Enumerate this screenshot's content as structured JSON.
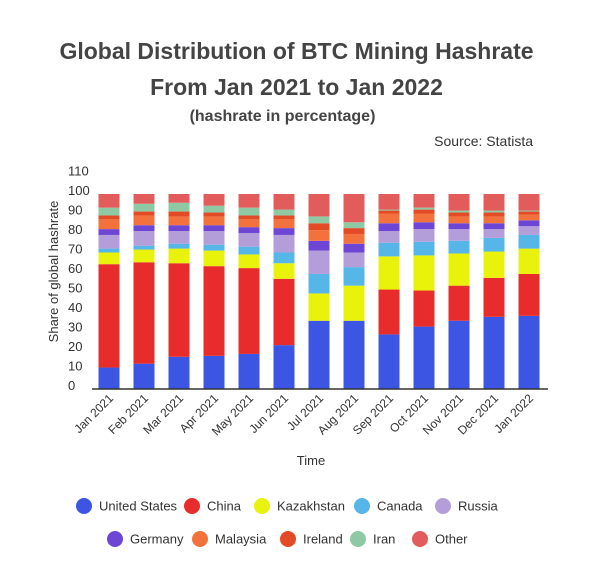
{
  "title_line1": "Global Distribution of BTC Mining Hashrate",
  "title_line2": "From Jan 2021 to Jan 2022",
  "subtitle": "(hashrate in percentage)",
  "source": "Source: Statista",
  "chart_data": {
    "type": "bar",
    "stacked": true,
    "title": "Global Distribution of BTC Mining Hashrate From Jan 2021 to Jan 2022",
    "subtitle": "(hashrate in percentage)",
    "xlabel": "Time",
    "ylabel": "Share of global hashrate",
    "ylim": [
      0,
      110
    ],
    "yticks": [
      0,
      10,
      20,
      30,
      40,
      50,
      60,
      70,
      80,
      90,
      100,
      110
    ],
    "grid": false,
    "legend_position": "bottom",
    "categories": [
      "Jan 2021",
      "Feb 2021",
      "Mar 2021",
      "Apr 2021",
      "May 2021",
      "Jun 2021",
      "Jul 2021",
      "Aug 2021",
      "Sep 2021",
      "Oct 2021",
      "Nov 2021",
      "Dec 2021",
      "Jan 2022"
    ],
    "series": [
      {
        "name": "United States",
        "color": "#3d55e3",
        "values": [
          11,
          13,
          16.5,
          17,
          18,
          22.5,
          35,
          35,
          28,
          32,
          35,
          37,
          37.5
        ]
      },
      {
        "name": "China",
        "color": "#e82b2b",
        "values": [
          53,
          52,
          48,
          46,
          44,
          34,
          0,
          0,
          23,
          18.5,
          18,
          20,
          21.5
        ]
      },
      {
        "name": "Kazakhstan",
        "color": "#e9f20a",
        "values": [
          6,
          6.5,
          7.5,
          8,
          7,
          8,
          14,
          18,
          17,
          18,
          16.5,
          13.5,
          13
        ]
      },
      {
        "name": "Canada",
        "color": "#56b6e8",
        "values": [
          2,
          2,
          2.5,
          3,
          4,
          5.5,
          10,
          9.5,
          7,
          7,
          6.5,
          7,
          7
        ]
      },
      {
        "name": "Russia",
        "color": "#b49ed9",
        "values": [
          7,
          7.5,
          6.5,
          7,
          7,
          9,
          12,
          7.5,
          6,
          6.5,
          6,
          4.5,
          4.5
        ]
      },
      {
        "name": "Germany",
        "color": "#6e46d6",
        "values": [
          3,
          3,
          3,
          3,
          3,
          3.5,
          5,
          4.5,
          4,
          3.5,
          3,
          3,
          3
        ]
      },
      {
        "name": "Malaysia",
        "color": "#f2713c",
        "values": [
          5,
          5,
          4.5,
          4.5,
          4,
          4.5,
          5.5,
          5,
          5,
          4.5,
          3.5,
          3.5,
          3
        ]
      },
      {
        "name": "Ireland",
        "color": "#e34a26",
        "values": [
          2,
          2,
          2.5,
          2,
          2,
          2,
          3.5,
          3,
          1.5,
          2,
          2,
          2,
          1.5
        ]
      },
      {
        "name": "Iran",
        "color": "#8fc9a4",
        "values": [
          4,
          4,
          4.5,
          3.5,
          4,
          3,
          3.5,
          3,
          0.5,
          1,
          1,
          1,
          0.5
        ]
      },
      {
        "name": "Other",
        "color": "#e35c5c",
        "values": [
          7,
          5,
          4.5,
          6,
          7,
          8,
          11.5,
          14.5,
          8,
          7,
          8.5,
          8.5,
          8.5
        ]
      }
    ]
  }
}
